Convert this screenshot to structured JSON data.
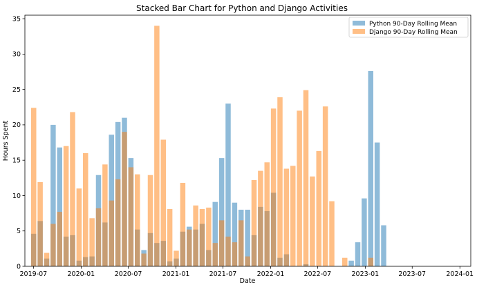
{
  "chart_data": {
    "type": "bar",
    "title": "Stacked Bar Chart for Python and Django Activities",
    "xlabel": "Date",
    "ylabel": "Hours Spent",
    "ylim": [
      0,
      35.5
    ],
    "yticks": [
      0,
      5,
      10,
      15,
      20,
      25,
      30,
      35
    ],
    "xlim": [
      "2019-05-29",
      "2024-02-12"
    ],
    "xticks": [
      {
        "date": "2019-07-01",
        "label": "2019-07"
      },
      {
        "date": "2020-01-01",
        "label": "2020-01"
      },
      {
        "date": "2020-07-01",
        "label": "2020-07"
      },
      {
        "date": "2021-01-01",
        "label": "2021-01"
      },
      {
        "date": "2021-07-01",
        "label": "2021-07"
      },
      {
        "date": "2022-01-01",
        "label": "2022-01"
      },
      {
        "date": "2022-07-01",
        "label": "2022-07"
      },
      {
        "date": "2023-01-01",
        "label": "2023-01"
      },
      {
        "date": "2023-07-01",
        "label": "2023-07"
      },
      {
        "date": "2024-01-01",
        "label": "2024-01"
      }
    ],
    "legend_position": "top-right",
    "dates": [
      "2019-07-02",
      "2019-07-27",
      "2019-08-21",
      "2019-09-15",
      "2019-10-10",
      "2019-11-04",
      "2019-11-29",
      "2019-12-24",
      "2020-01-18",
      "2020-02-12",
      "2020-03-08",
      "2020-04-02",
      "2020-04-27",
      "2020-05-22",
      "2020-06-16",
      "2020-07-11",
      "2020-08-05",
      "2020-08-30",
      "2020-09-24",
      "2020-10-19",
      "2020-11-13",
      "2020-12-08",
      "2021-01-02",
      "2021-01-27",
      "2021-02-21",
      "2021-03-18",
      "2021-04-12",
      "2021-05-07",
      "2021-06-01",
      "2021-06-26",
      "2021-07-21",
      "2021-08-15",
      "2021-09-09",
      "2021-10-04",
      "2021-10-29",
      "2021-11-23",
      "2021-12-18",
      "2022-01-12",
      "2022-02-06",
      "2022-03-03",
      "2022-03-28",
      "2022-04-22",
      "2022-05-17",
      "2022-06-11",
      "2022-07-06",
      "2022-07-31",
      "2022-08-25",
      "2022-09-19",
      "2022-10-14",
      "2022-11-08",
      "2022-12-03",
      "2022-12-28",
      "2023-01-22",
      "2023-02-16",
      "2023-03-13",
      "2023-04-07",
      "2023-05-02",
      "2023-05-27",
      "2023-06-21",
      "2023-07-16",
      "2023-08-10",
      "2023-09-04",
      "2023-09-29",
      "2023-10-24",
      "2023-11-18"
    ],
    "series": [
      {
        "name": "Python 90-Day Rolling Mean",
        "color": "#1f77b4",
        "values": [
          4.6,
          6.4,
          1.1,
          20.0,
          16.8,
          4.2,
          4.4,
          0.8,
          1.3,
          1.4,
          12.9,
          6.2,
          18.6,
          20.4,
          21.0,
          15.3,
          5.2,
          2.3,
          4.7,
          3.3,
          3.6,
          0.7,
          1.1,
          4.9,
          5.6,
          5.2,
          6.0,
          2.3,
          9.1,
          15.3,
          23.0,
          9.0,
          8.0,
          8.0,
          4.4,
          8.4,
          7.8,
          10.4,
          1.2,
          1.7,
          0,
          0,
          0.3,
          0,
          0,
          0,
          0,
          0,
          0,
          0.8,
          3.4,
          9.6,
          27.6,
          17.5,
          5.8,
          0,
          0,
          0,
          0,
          0,
          0,
          0,
          0,
          0,
          0
        ]
      },
      {
        "name": "Django 90-Day Rolling Mean",
        "color": "#ff7f0e",
        "values": [
          22.4,
          11.9,
          1.9,
          6.0,
          7.7,
          17.0,
          21.8,
          11.0,
          16.0,
          6.8,
          8.2,
          14.4,
          9.3,
          12.3,
          19.0,
          14.0,
          13.0,
          1.8,
          12.9,
          34.0,
          17.9,
          8.1,
          2.2,
          11.8,
          5.2,
          8.6,
          8.1,
          8.3,
          3.3,
          6.5,
          4.2,
          3.4,
          6.5,
          1.4,
          12.2,
          13.5,
          14.7,
          22.3,
          23.9,
          13.8,
          14.2,
          22.0,
          24.9,
          12.7,
          16.3,
          22.6,
          9.2,
          0,
          1.2,
          0,
          0,
          0,
          1.2,
          0,
          0,
          0,
          0,
          0,
          0,
          0,
          0,
          0,
          0,
          0,
          0
        ]
      }
    ]
  }
}
